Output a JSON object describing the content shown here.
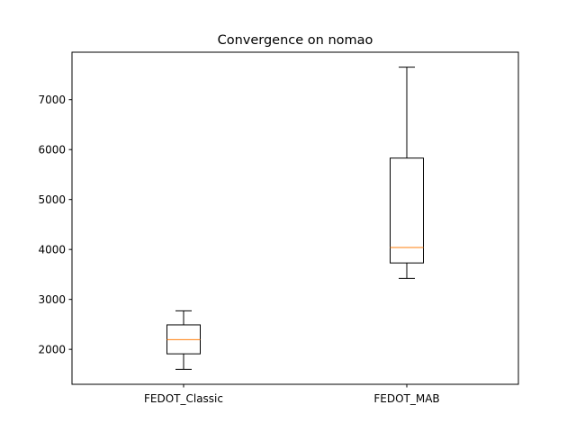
{
  "chart_data": {
    "type": "box",
    "title": "Convergence on nomao",
    "xlabel": "",
    "ylabel": "",
    "categories": [
      "FEDOT_Classic",
      "FEDOT_MAB"
    ],
    "boxes": [
      {
        "whisker_low": 1600,
        "q1": 1910,
        "median": 2195,
        "q3": 2490,
        "whisker_high": 2770
      },
      {
        "whisker_low": 3420,
        "q1": 3730,
        "median": 4040,
        "q3": 5830,
        "whisker_high": 7650
      }
    ],
    "ylim": [
      1300,
      7950
    ],
    "yticks": [
      2000,
      3000,
      4000,
      5000,
      6000,
      7000
    ],
    "grid": false,
    "colors": {
      "box": "#000000",
      "median": "#ff7f0e",
      "axes": "#000000"
    }
  }
}
